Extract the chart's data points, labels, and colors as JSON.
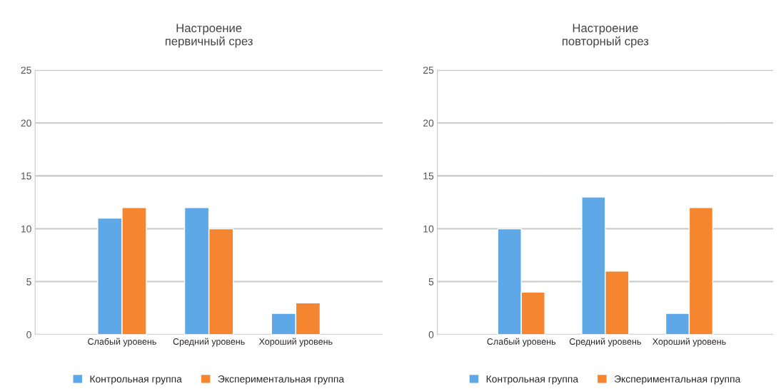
{
  "chart_data": [
    {
      "type": "bar",
      "title": "Настроение\nпервичный срез",
      "categories": [
        "Слабый уровень",
        "Средний уровень",
        "Хороший уровень"
      ],
      "series": [
        {
          "name": "Контрольная группа",
          "color": "#5fa8e8",
          "values": [
            11,
            12,
            2
          ]
        },
        {
          "name": "Экспериментальная группа",
          "color": "#f5852f",
          "values": [
            12,
            10,
            3
          ]
        }
      ],
      "ylim": [
        0,
        25
      ],
      "yticks": [
        0,
        5,
        10,
        15,
        20,
        25
      ],
      "grid": "y",
      "legend": "bottom"
    },
    {
      "type": "bar",
      "title": "Настроение\nповторный срез",
      "categories": [
        "Слабый уровень",
        "Средний уровень",
        "Хороший уровень"
      ],
      "series": [
        {
          "name": "Контрольная группа",
          "color": "#5fa8e8",
          "values": [
            10,
            13,
            2
          ]
        },
        {
          "name": "Экспериментальная группа",
          "color": "#f5852f",
          "values": [
            4,
            6,
            12
          ]
        }
      ],
      "ylim": [
        0,
        25
      ],
      "yticks": [
        0,
        5,
        10,
        15,
        20,
        25
      ],
      "grid": "y",
      "legend": "bottom"
    }
  ]
}
